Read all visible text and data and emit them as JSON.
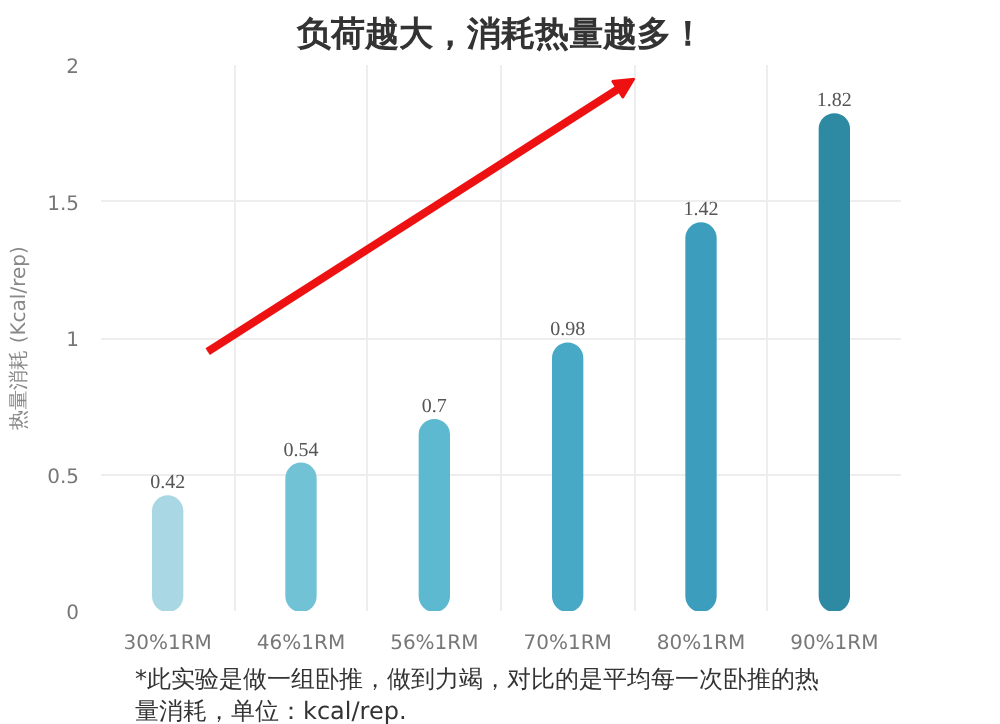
{
  "chart_data": {
    "type": "bar",
    "title": "负荷越大，消耗热量越多！",
    "ylabel": "热量消耗 (Kcal/rep)",
    "categories": [
      "30%1RM",
      "46%1RM",
      "56%1RM",
      "70%1RM",
      "80%1RM",
      "90%1RM"
    ],
    "values": [
      0.42,
      0.54,
      0.7,
      0.98,
      1.42,
      1.82
    ],
    "colors": [
      "#a9d8e4",
      "#72c2d6",
      "#5cb9d0",
      "#47a9c6",
      "#3c9dbd",
      "#2e8aa3"
    ],
    "data_labels": true,
    "ylim": [
      0,
      2
    ],
    "yticks": [
      0,
      0.5,
      1,
      1.5,
      2
    ],
    "grid": true,
    "annotations": [
      "*此实验是做一组卧推，做到力竭，对比的是平均每一次卧推的热量消耗，单位：kcal/rep."
    ]
  }
}
